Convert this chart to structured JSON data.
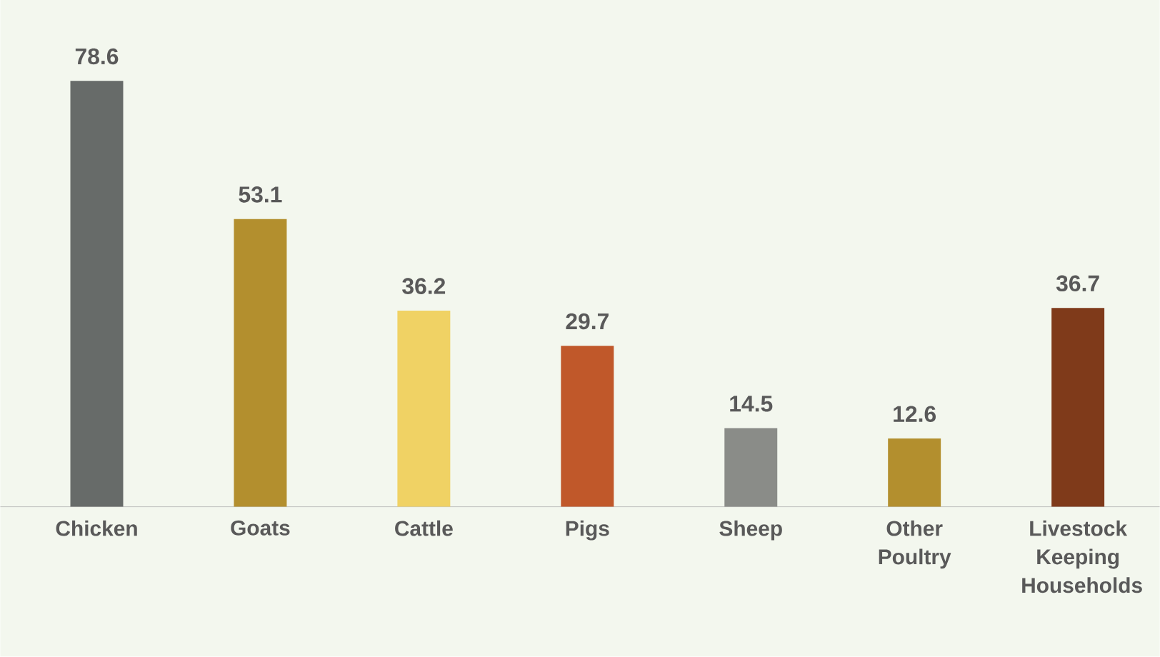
{
  "chart_data": {
    "type": "bar",
    "categories": [
      "Chicken",
      "Goats",
      "Cattle",
      "Pigs",
      "Sheep",
      "Other Poultry",
      "Livestock Keeping Households"
    ],
    "values": [
      78.6,
      53.1,
      36.2,
      29.7,
      14.5,
      12.6,
      36.7
    ],
    "colors": [
      "#676b69",
      "#b38f2e",
      "#f0d264",
      "#c0582a",
      "#8a8c88",
      "#b38f2e",
      "#7f3a1a"
    ],
    "data_labels": true
  }
}
